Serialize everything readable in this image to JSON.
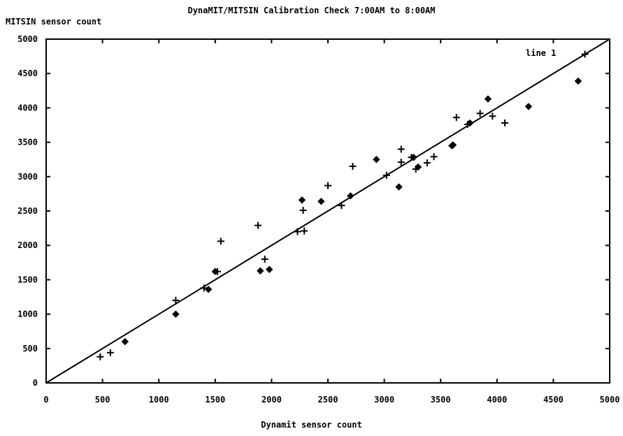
{
  "chart_data": {
    "type": "scatter",
    "title": "DynaMIT/MITSIN Calibration Check 7:00AM to 8:00AM",
    "xlabel": "Dynamit sensor count",
    "ylabel": "MITSIN sensor count",
    "xlim": [
      0,
      5000
    ],
    "ylim": [
      0,
      5000
    ],
    "x_ticks": [
      "0",
      "500",
      "1000",
      "1500",
      "2000",
      "2500",
      "3000",
      "3500",
      "4000",
      "4500",
      "5000"
    ],
    "y_ticks": [
      "0",
      "500",
      "1000",
      "1500",
      "2000",
      "2500",
      "3000",
      "3500",
      "4000",
      "4500",
      "5000"
    ],
    "legend": {
      "placement": "top-right",
      "entries": [
        "line 1"
      ]
    },
    "fit_line": {
      "name": "line 1",
      "x": [
        0,
        5000
      ],
      "y": [
        0,
        5000
      ]
    },
    "points_plus": [
      [
        480,
        380
      ],
      [
        570,
        440
      ],
      [
        1150,
        1200
      ],
      [
        1400,
        1380
      ],
      [
        1520,
        1620
      ],
      [
        1550,
        2060
      ],
      [
        1880,
        2290
      ],
      [
        1940,
        1800
      ],
      [
        2230,
        2200
      ],
      [
        2290,
        2210
      ],
      [
        2280,
        2510
      ],
      [
        2500,
        2870
      ],
      [
        2620,
        2580
      ],
      [
        2720,
        3150
      ],
      [
        3020,
        3020
      ],
      [
        3150,
        3400
      ],
      [
        3150,
        3210
      ],
      [
        3240,
        3280
      ],
      [
        3280,
        3110
      ],
      [
        3380,
        3200
      ],
      [
        3440,
        3290
      ],
      [
        3640,
        3860
      ],
      [
        3740,
        3760
      ],
      [
        3850,
        3920
      ],
      [
        3960,
        3880
      ],
      [
        4070,
        3780
      ],
      [
        4780,
        4780
      ]
    ],
    "points_diamond": [
      [
        700,
        600
      ],
      [
        1150,
        1000
      ],
      [
        1440,
        1360
      ],
      [
        1500,
        1620
      ],
      [
        1900,
        1630
      ],
      [
        1980,
        1650
      ],
      [
        2270,
        2660
      ],
      [
        2440,
        2640
      ],
      [
        2700,
        2720
      ],
      [
        2930,
        3250
      ],
      [
        3130,
        2850
      ],
      [
        3260,
        3280
      ],
      [
        3300,
        3140
      ],
      [
        3600,
        3450
      ],
      [
        3610,
        3460
      ],
      [
        3760,
        3780
      ],
      [
        3920,
        4130
      ],
      [
        4280,
        4020
      ],
      [
        4720,
        4390
      ]
    ]
  }
}
